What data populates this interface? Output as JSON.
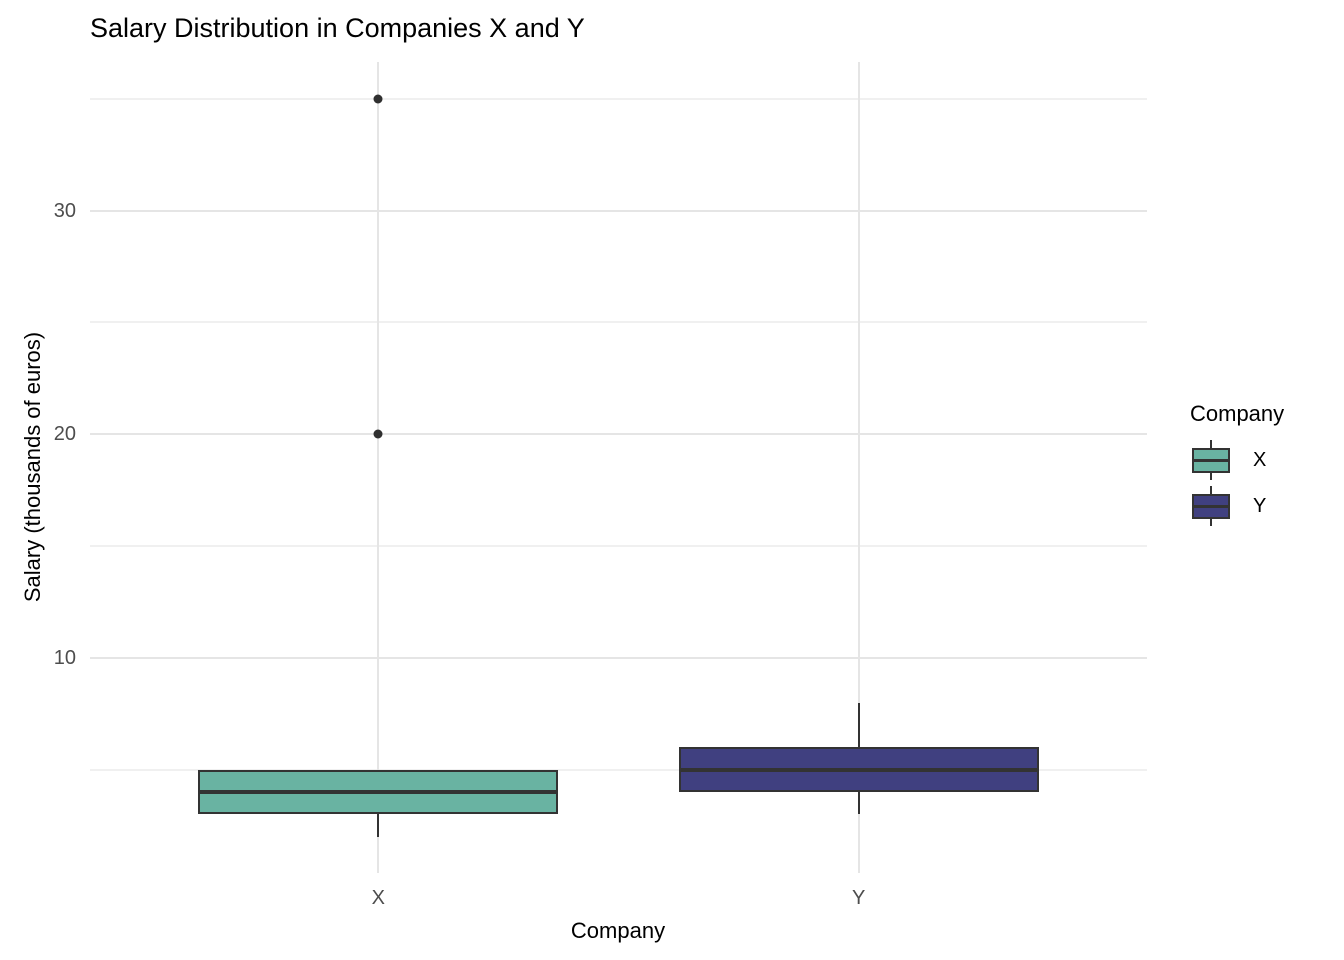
{
  "title": "Salary Distribution in Companies X and Y",
  "x_axis": {
    "title": "Company",
    "tick_labels": [
      "X",
      "Y"
    ]
  },
  "y_axis": {
    "title": "Salary (thousands of euros)",
    "tick_labels": [
      "10",
      "20",
      "30"
    ],
    "major_ticks": [
      10,
      20,
      30
    ],
    "minor_ticks": [
      5,
      15,
      25,
      35
    ]
  },
  "legend": {
    "title": "Company",
    "entries": [
      {
        "label": "X",
        "color": "#69b3a2"
      },
      {
        "label": "Y",
        "color": "#404080"
      }
    ]
  },
  "colors": {
    "stroke": "#333333",
    "outlier": "#2f2f2f",
    "grid_major": "#e5e5e5",
    "grid_minor": "#f0f0f0",
    "tick_label": "#4d4d4d",
    "background": "#ffffff"
  },
  "chart_data": {
    "type": "boxplot",
    "title": "Salary Distribution in Companies X and Y",
    "xlabel": "Company",
    "ylabel": "Salary (thousands of euros)",
    "categories": [
      "X",
      "Y"
    ],
    "ylim": [
      0.38,
      36.65
    ],
    "grid": "horizontal major at 10/20/30, horizontal minor at 5/15/25/35, vertical major at each category",
    "legend_position": "right",
    "legend_title": "Company",
    "series": [
      {
        "name": "X",
        "fill": "#69b3a2",
        "whisker_low": 2,
        "q1": 3,
        "median": 4,
        "q3": 5,
        "whisker_high": 5,
        "outliers": [
          20,
          35
        ]
      },
      {
        "name": "Y",
        "fill": "#404080",
        "whisker_low": 3,
        "q1": 4,
        "median": 5,
        "q3": 6,
        "whisker_high": 8,
        "outliers": []
      }
    ]
  }
}
